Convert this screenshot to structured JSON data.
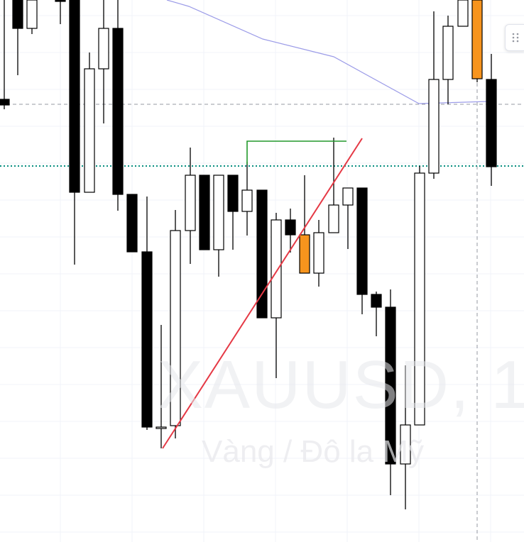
{
  "watermark": {
    "symbol": "XAUUSD, 1",
    "description": "Vàng / Đô la Mỹ"
  },
  "colors": {
    "background": "#ffffff",
    "grid": "#f0f3fa",
    "bear_candle": "#000000",
    "bull_candle": "#ffffff",
    "highlight_candle": "#f7941d",
    "moving_average": "#9c9ce8",
    "trendline": "#e53945",
    "horizontal_level": "#22992b",
    "support_line": "#088f80",
    "crosshair": "#9598a1"
  },
  "icons": {
    "drag_handle": "drag-handle-icon"
  },
  "chart_data": {
    "type": "candlestick",
    "title": "",
    "xlabel": "",
    "ylabel": "",
    "ylim": [
      0,
      764
    ],
    "y_note": "relative price units (no price axis visible); higher = higher price",
    "grid": true,
    "candles": [
      {
        "x": 6,
        "open": 624,
        "close": 616,
        "high": 764,
        "low": 610,
        "color": "bear"
      },
      {
        "x": 25,
        "open": 764,
        "close": 724,
        "high": 764,
        "low": 658,
        "color": "bear"
      },
      {
        "x": 45,
        "open": 724,
        "close": 764,
        "high": 764,
        "low": 716,
        "color": "bull"
      },
      {
        "x": 85,
        "open": 764,
        "close": 764,
        "high": 764,
        "low": 730,
        "color": "bear"
      },
      {
        "x": 105,
        "open": 764,
        "close": 493,
        "high": 764,
        "low": 391,
        "color": "bear"
      },
      {
        "x": 126,
        "open": 493,
        "close": 667,
        "high": 690,
        "low": 493,
        "color": "bull"
      },
      {
        "x": 146,
        "open": 667,
        "close": 724,
        "high": 764,
        "low": 590,
        "color": "bull"
      },
      {
        "x": 166,
        "open": 724,
        "close": 490,
        "high": 764,
        "low": 467,
        "color": "bear"
      },
      {
        "x": 186,
        "open": 490,
        "close": 409,
        "high": 490,
        "low": 409,
        "color": "bear"
      },
      {
        "x": 207,
        "open": 409,
        "close": 162,
        "high": 487,
        "low": 158,
        "color": "bear"
      },
      {
        "x": 227,
        "open": 162,
        "close": 160,
        "high": 306,
        "low": 132,
        "color": "bull"
      },
      {
        "x": 247,
        "open": 164,
        "close": 439,
        "high": 468,
        "low": 146,
        "color": "bull"
      },
      {
        "x": 268,
        "open": 439,
        "close": 517,
        "high": 556,
        "low": 392,
        "color": "bull"
      },
      {
        "x": 288,
        "open": 517,
        "close": 412,
        "high": 517,
        "low": 412,
        "color": "bear"
      },
      {
        "x": 308,
        "open": 412,
        "close": 517,
        "high": 517,
        "low": 374,
        "color": "bull"
      },
      {
        "x": 328,
        "open": 517,
        "close": 466,
        "high": 517,
        "low": 412,
        "color": "bear"
      },
      {
        "x": 348,
        "open": 466,
        "close": 496,
        "high": 536,
        "low": 432,
        "color": "bull"
      },
      {
        "x": 369,
        "open": 496,
        "close": 316,
        "high": 496,
        "low": 316,
        "color": "bear"
      },
      {
        "x": 389,
        "open": 316,
        "close": 454,
        "high": 464,
        "low": 231,
        "color": "bull"
      },
      {
        "x": 409,
        "open": 454,
        "close": 433,
        "high": 470,
        "low": 408,
        "color": "bear"
      },
      {
        "x": 429,
        "open": 433,
        "close": 379,
        "high": 517,
        "low": 379,
        "color": "highlight"
      },
      {
        "x": 449,
        "open": 379,
        "close": 436,
        "high": 454,
        "low": 360,
        "color": "bull"
      },
      {
        "x": 470,
        "open": 436,
        "close": 475,
        "high": 570,
        "low": 436,
        "color": "bull"
      },
      {
        "x": 490,
        "open": 475,
        "close": 499,
        "high": 499,
        "low": 413,
        "color": "bull"
      },
      {
        "x": 510,
        "open": 499,
        "close": 349,
        "high": 499,
        "low": 321,
        "color": "bear"
      },
      {
        "x": 530,
        "open": 349,
        "close": 331,
        "high": 353,
        "low": 290,
        "color": "bear"
      },
      {
        "x": 550,
        "open": 331,
        "close": 110,
        "high": 356,
        "low": 66,
        "color": "bear"
      },
      {
        "x": 571,
        "open": 110,
        "close": 165,
        "high": 249,
        "low": 46,
        "color": "bull"
      },
      {
        "x": 591,
        "open": 165,
        "close": 520,
        "high": 530,
        "low": 165,
        "color": "bull"
      },
      {
        "x": 611,
        "open": 520,
        "close": 652,
        "high": 748,
        "low": 512,
        "color": "bull"
      },
      {
        "x": 631,
        "open": 652,
        "close": 727,
        "high": 742,
        "low": 617,
        "color": "bull"
      },
      {
        "x": 652,
        "open": 727,
        "close": 764,
        "high": 764,
        "low": 727,
        "color": "bull"
      },
      {
        "x": 672,
        "open": 764,
        "close": 653,
        "high": 764,
        "low": 648,
        "color": "highlight"
      },
      {
        "x": 692,
        "open": 652,
        "close": 529,
        "high": 688,
        "low": 502,
        "color": "bear"
      }
    ],
    "moving_average": [
      {
        "x": 235,
        "y": 764
      },
      {
        "x": 266,
        "y": 755
      },
      {
        "x": 370,
        "y": 709
      },
      {
        "x": 470,
        "y": 684
      },
      {
        "x": 590,
        "y": 618
      },
      {
        "x": 688,
        "y": 621
      }
    ],
    "trendline": {
      "x1": 229,
      "y1": 132,
      "x2": 510,
      "y2": 569
    },
    "horizontal_segment": {
      "x1": 348,
      "x2": 488,
      "y": 565,
      "left_tick_bottom_y": 532
    },
    "levels": [
      {
        "y": 617,
        "style": "dashed"
      },
      {
        "y": 530,
        "style": "dotted"
      }
    ],
    "crosshair_x": 672
  }
}
